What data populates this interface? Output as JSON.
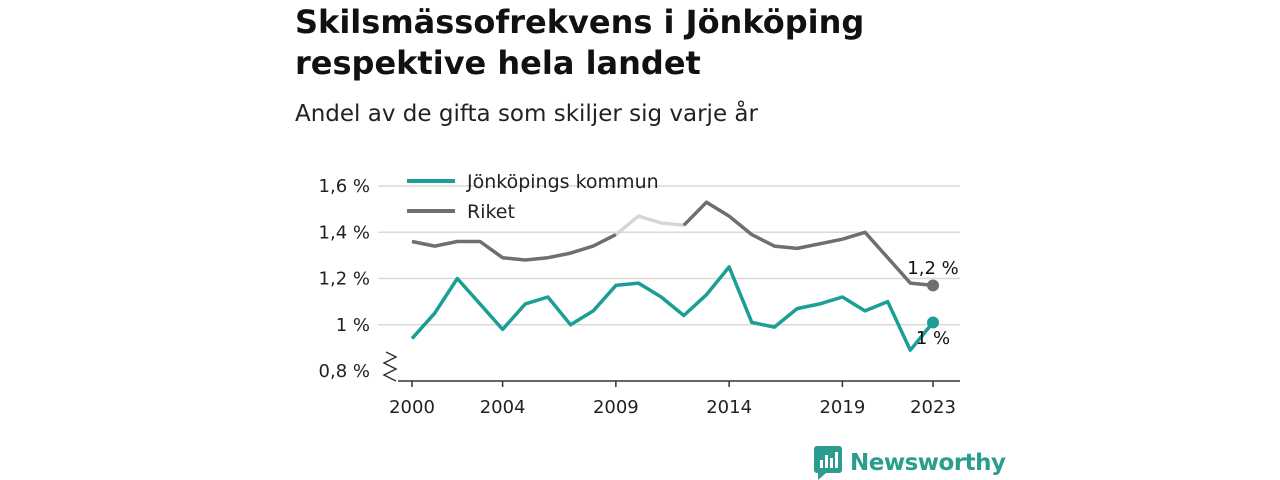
{
  "title": "Skilsmässofrekvens i Jönköping respektive hela landet",
  "subtitle": "Andel av de gifta som skiljer sig varje år",
  "brand": "Newsworthy",
  "colors": {
    "jonkoping": "#1a9e96",
    "riket": "#6e6e73",
    "riket_faded": "#d6d6d6",
    "grid": "#d9d9d9",
    "brand": "#2a9d8f"
  },
  "chart_data": {
    "type": "line",
    "title": "Skilsmässofrekvens i Jönköping respektive hela landet",
    "subtitle": "Andel av de gifta som skiljer sig varje år",
    "x": [
      2000,
      2001,
      2002,
      2003,
      2004,
      2005,
      2006,
      2007,
      2008,
      2009,
      2010,
      2011,
      2012,
      2013,
      2014,
      2015,
      2016,
      2017,
      2018,
      2019,
      2020,
      2021,
      2022,
      2023
    ],
    "x_ticks": [
      2000,
      2004,
      2009,
      2014,
      2019,
      2023
    ],
    "x_tick_labels": [
      "2000",
      "2004",
      "2009",
      "2014",
      "2019",
      "2023"
    ],
    "y_ticks": [
      0.8,
      1.0,
      1.2,
      1.4,
      1.6
    ],
    "y_tick_labels": [
      "0,8 %",
      "1 %",
      "1,2 %",
      "1,4 %",
      "1,6 %"
    ],
    "ylim": [
      0.8,
      1.6
    ],
    "y_axis_break": true,
    "grid": true,
    "legend_position": "top-left",
    "series": [
      {
        "name": "Jönköpings kommun",
        "key": "jonkoping",
        "values": [
          0.94,
          1.05,
          1.2,
          1.09,
          0.98,
          1.09,
          1.12,
          1.0,
          1.06,
          1.17,
          1.18,
          1.12,
          1.04,
          1.13,
          1.25,
          1.01,
          0.99,
          1.07,
          1.09,
          1.12,
          1.06,
          1.1,
          0.89,
          1.01
        ],
        "end_label": "1 %"
      },
      {
        "name": "Riket",
        "key": "riket",
        "values": [
          1.36,
          1.34,
          1.36,
          1.36,
          1.29,
          1.28,
          1.29,
          1.31,
          1.34,
          1.39,
          1.47,
          1.44,
          1.43,
          1.53,
          1.47,
          1.39,
          1.34,
          1.33,
          1.35,
          1.37,
          1.4,
          1.29,
          1.18,
          1.17
        ],
        "faded_from": 2009,
        "faded_to": 2012,
        "end_label": "1,2 %"
      }
    ]
  }
}
